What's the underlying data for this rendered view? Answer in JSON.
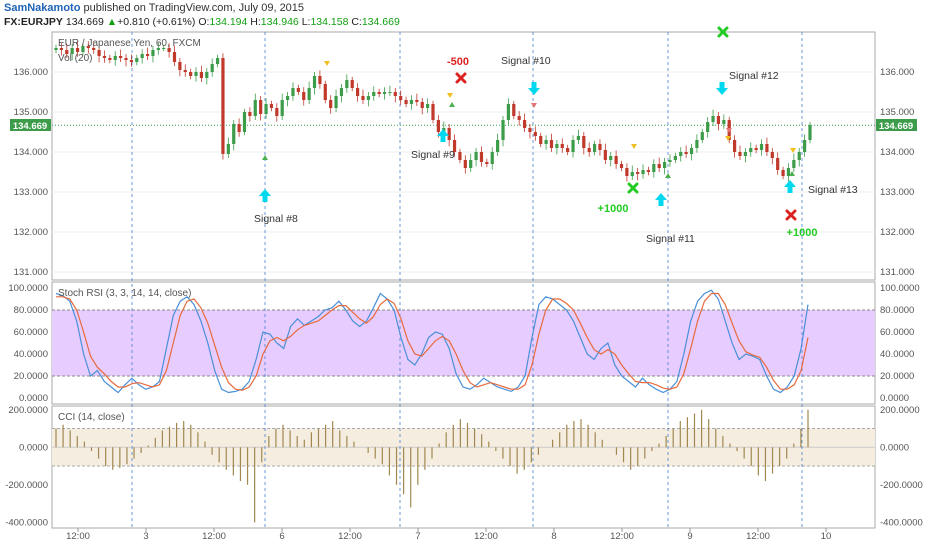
{
  "header": {
    "author": "SamNakamoto",
    "published_text": "published on TradingView.com, July 09, 2015",
    "symbol": "FX:EURJPY",
    "price": "134.669",
    "change_arrow": "▲",
    "change": "+0.810 (+0.61%)",
    "open_label": "O:",
    "open": "134.194",
    "high_label": "H:",
    "high": "134.946",
    "low_label": "L:",
    "low": "134.158",
    "close_label": "C:",
    "close": "134.669"
  },
  "panes": {
    "price_title": "EUR / Japanese Yen, 60, FXCM",
    "volume_title": "Vol (20)",
    "stoch_title": "Stoch RSI (3, 3, 14, 14, close)",
    "cci_title": "CCI (14, close)"
  },
  "last_price_label": "134.669",
  "colors": {
    "up": "#3c9c4a",
    "down": "#c0392b",
    "k_line": "#4a90d9",
    "d_line": "#e86a3c",
    "stoch_band": "#e6ccff",
    "cci_band": "#f5ede0",
    "cci_bar": "#a08850",
    "signal_cyan": "#00d8f0",
    "author": "#1e63b5"
  },
  "chart_data": [
    {
      "type": "candlestick",
      "title": "EUR / Japanese Yen, 60, FXCM",
      "x_tick_labels": [
        "12:00",
        "3",
        "12:00",
        "6",
        "12:00",
        "7",
        "12:00",
        "8",
        "12:00",
        "9",
        "12:00",
        "10"
      ],
      "y_tick_labels": [
        "131.000",
        "132.000",
        "133.000",
        "134.000",
        "135.000",
        "136.000"
      ],
      "ylim": [
        130.8,
        137.0
      ],
      "close_series": [
        136.6,
        136.55,
        136.45,
        136.6,
        136.5,
        136.65,
        136.6,
        136.55,
        136.4,
        136.35,
        136.3,
        136.4,
        136.35,
        136.3,
        136.25,
        136.35,
        136.45,
        136.4,
        136.55,
        136.6,
        136.6,
        136.5,
        136.25,
        136.05,
        136.0,
        135.9,
        136.0,
        135.85,
        136.0,
        136.2,
        136.35,
        133.95,
        134.2,
        134.7,
        134.5,
        135.0,
        134.9,
        135.3,
        134.95,
        135.2,
        135.1,
        134.9,
        135.3,
        135.4,
        135.6,
        135.5,
        135.3,
        135.6,
        135.9,
        135.7,
        135.3,
        135.1,
        135.4,
        135.6,
        135.8,
        135.6,
        135.4,
        135.3,
        135.4,
        135.5,
        135.45,
        135.5,
        135.5,
        135.4,
        135.3,
        135.2,
        135.3,
        135.25,
        135.1,
        135.2,
        134.8,
        134.5,
        134.6,
        134.3,
        134.0,
        133.8,
        133.6,
        133.8,
        134.0,
        133.75,
        133.7,
        134.0,
        134.3,
        134.8,
        135.2,
        134.9,
        134.8,
        134.6,
        134.5,
        134.4,
        134.2,
        134.3,
        134.1,
        134.2,
        134.1,
        134.0,
        134.3,
        134.4,
        134.1,
        134.0,
        134.2,
        134.05,
        133.8,
        133.9,
        133.7,
        133.6,
        133.4,
        133.5,
        133.45,
        133.55,
        133.5,
        133.7,
        133.6,
        133.75,
        133.8,
        133.9,
        134.0,
        133.95,
        134.1,
        134.3,
        134.5,
        134.75,
        134.9,
        134.7,
        134.8,
        134.3,
        134.0,
        133.9,
        134.0,
        134.1,
        134.05,
        134.2,
        134.0,
        133.85,
        133.55,
        133.4,
        133.6,
        133.8,
        134.0,
        134.3,
        134.67
      ],
      "signals": [
        {
          "label": "Signal #8",
          "type": "buy"
        },
        {
          "label": "Signal #9",
          "type": "buy"
        },
        {
          "label": "Signal #10",
          "type": "sell"
        },
        {
          "label": "Signal #11",
          "type": "buy"
        },
        {
          "label": "Signal #12",
          "type": "sell"
        },
        {
          "label": "Signal #13",
          "type": "buy"
        }
      ],
      "trade_results": [
        "-500",
        "+1000",
        "+1000"
      ]
    },
    {
      "type": "line",
      "title": "Stoch RSI (3, 3, 14, 14, close)",
      "y_tick_labels": [
        "0.0000",
        "20.0000",
        "40.0000",
        "60.0000",
        "80.0000",
        "100.0000"
      ],
      "ylim": [
        0,
        100
      ],
      "band": [
        20,
        80
      ],
      "series": [
        {
          "values": [
            95,
            93,
            88,
            70,
            40,
            20,
            25,
            15,
            10,
            5,
            12,
            18,
            12,
            8,
            10,
            15,
            45,
            75,
            88,
            92,
            85,
            70,
            50,
            25,
            8,
            5,
            6,
            8,
            15,
            35,
            60,
            58,
            50,
            45,
            65,
            72,
            66,
            70,
            74,
            80,
            82,
            88,
            80,
            70,
            65,
            70,
            82,
            95,
            90,
            80,
            55,
            35,
            30,
            40,
            55,
            60,
            58,
            45,
            22,
            10,
            8,
            12,
            18,
            14,
            10,
            8,
            6,
            10,
            20,
            55,
            85,
            92,
            90,
            85,
            80,
            70,
            55,
            40,
            35,
            45,
            50,
            30,
            20,
            15,
            10,
            18,
            12,
            8,
            5,
            8,
            15,
            40,
            70,
            88,
            95,
            98,
            90,
            70,
            50,
            35,
            40,
            38,
            35,
            20,
            8,
            5,
            10,
            20,
            45,
            85
          ]
        },
        {
          "values": [
            92,
            92,
            90,
            80,
            60,
            38,
            28,
            22,
            15,
            10,
            10,
            13,
            14,
            12,
            10,
            12,
            25,
            50,
            75,
            88,
            90,
            82,
            68,
            48,
            28,
            14,
            8,
            7,
            10,
            20,
            40,
            52,
            55,
            52,
            56,
            62,
            66,
            68,
            70,
            75,
            80,
            84,
            84,
            78,
            72,
            68,
            74,
            85,
            90,
            86,
            72,
            52,
            40,
            38,
            45,
            52,
            56,
            52,
            40,
            25,
            14,
            10,
            12,
            14,
            12,
            10,
            8,
            8,
            12,
            30,
            58,
            80,
            90,
            90,
            86,
            80,
            68,
            55,
            44,
            40,
            44,
            40,
            30,
            22,
            15,
            14,
            14,
            12,
            9,
            8,
            10,
            22,
            45,
            70,
            88,
            95,
            95,
            85,
            68,
            52,
            42,
            39,
            37,
            28,
            16,
            8,
            8,
            12,
            25,
            55
          ]
        }
      ]
    },
    {
      "type": "bar",
      "title": "CCI (14, close)",
      "y_tick_labels": [
        "-400.0000",
        "-200.0000",
        "0.0000",
        "200.0000"
      ],
      "ylim": [
        -430,
        220
      ],
      "band": [
        -100,
        100
      ],
      "values": [
        100,
        120,
        90,
        60,
        30,
        -20,
        -60,
        -100,
        -120,
        -110,
        -90,
        -60,
        -30,
        10,
        50,
        90,
        110,
        130,
        140,
        120,
        80,
        30,
        -40,
        -80,
        -120,
        -150,
        -180,
        -200,
        -400,
        -80,
        60,
        100,
        120,
        90,
        60,
        40,
        80,
        100,
        120,
        140,
        90,
        60,
        30,
        0,
        -30,
        -60,
        -90,
        -150,
        -200,
        -250,
        -320,
        -200,
        -120,
        -60,
        20,
        80,
        120,
        150,
        130,
        100,
        70,
        30,
        -20,
        -60,
        -100,
        -140,
        -120,
        -80,
        -40,
        0,
        40,
        80,
        120,
        140,
        150,
        120,
        80,
        40,
        0,
        -40,
        -80,
        -120,
        -100,
        -60,
        -20,
        20,
        60,
        100,
        140,
        160,
        180,
        200,
        150,
        100,
        60,
        20,
        -20,
        -60,
        -100,
        -150,
        -180,
        -140,
        -100,
        -60,
        20,
        100,
        200
      ]
    }
  ]
}
